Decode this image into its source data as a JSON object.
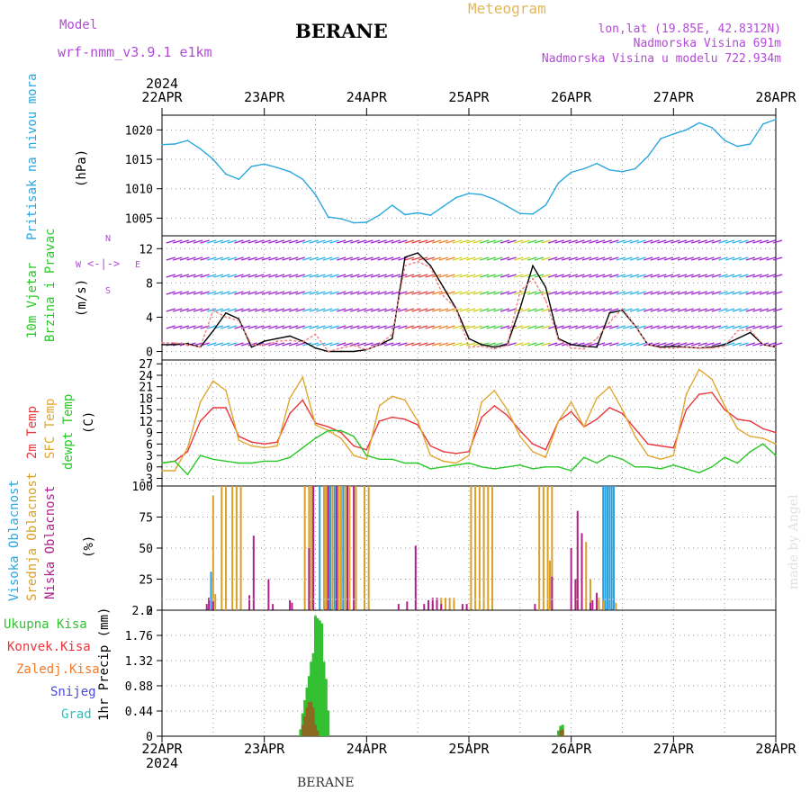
{
  "header": {
    "model_label": "Model",
    "model_name": "wrf-nmm_v3.9.1 e1km",
    "station": "BERANE",
    "product": "Meteogram",
    "lonlat": "lon,lat (19.85E, 42.8312N)",
    "elevation": "Nadmorska Visina 691m",
    "model_elevation": "Nadmorska Visina u modelu 722.934m"
  },
  "footer": {
    "station": "BERANE",
    "credit": "made by Angel"
  },
  "time_axis": {
    "year": "2024",
    "ticks": [
      "22APR",
      "23APR",
      "24APR",
      "25APR",
      "26APR",
      "27APR",
      "28APR"
    ]
  },
  "colors": {
    "pressure": "#2aa7df",
    "temp2m": "#e8363a",
    "sfc_temp": "#e0a632",
    "dewpoint": "#28c828",
    "cloud_high": "#2a9fe0",
    "cloud_mid": "#d9a02a",
    "cloud_low": "#b0208a",
    "precip_total": "#33c033",
    "precip_conv": "#e8363a",
    "precip_frozen": "#f07a2a",
    "precip_snow": "#4a4ad8",
    "precip_hail": "#2ac0c0",
    "wind_speed": "#000000",
    "wind_gust": "#f08080"
  },
  "panel_labels": {
    "pressure": [
      "Pritisak na nivou mora",
      "(hPa)"
    ],
    "wind": [
      "10m Vjetar",
      "Brzina i Pravac",
      "(m/s)"
    ],
    "wind_compass": [
      "N",
      "W",
      "E",
      "S"
    ],
    "temp": [
      "2m Temp",
      "SFC Temp",
      "dewpt Temp",
      "(C)"
    ],
    "cloud": [
      "Visoka Oblacnost",
      "Srednja Oblacnost",
      "Niska Oblacnost",
      "(%)"
    ],
    "precip_legend": [
      "Ukupna Kisa",
      "Konvek.Kisa",
      "Zaledj.Kisa",
      "Snijeg",
      "Grad"
    ],
    "precip_axis": "1hr Precip (mm)"
  },
  "chart_data": [
    {
      "type": "line",
      "panel": "pressure",
      "ylim": [
        1002,
        1022.5
      ],
      "yticks": [
        1005,
        1010,
        1015,
        1020
      ],
      "x": [
        0,
        3,
        6,
        9,
        12,
        15,
        18,
        21,
        24,
        27,
        30,
        33,
        36,
        39,
        42,
        45,
        48,
        51,
        54,
        57,
        60,
        63,
        66,
        69,
        72,
        75,
        78,
        81,
        84,
        87,
        90,
        93,
        96,
        99,
        102,
        105,
        108,
        111,
        114,
        117,
        120,
        123,
        126,
        129,
        132,
        135,
        138,
        141,
        144
      ],
      "series": [
        {
          "values": [
            1017.5,
            1017.6,
            1018.2,
            1016.8,
            1015.0,
            1012.5,
            1011.6,
            1013.8,
            1014.2,
            1013.6,
            1012.9,
            1011.6,
            1009.0,
            1005.2,
            1004.9,
            1004.2,
            1004.3,
            1005.5,
            1007.2,
            1005.6,
            1005.9,
            1005.5,
            1007.0,
            1008.5,
            1009.2,
            1009.0,
            1008.2,
            1007.0,
            1005.8,
            1005.7,
            1007.2,
            1011.0,
            1012.8,
            1013.4,
            1014.3,
            1013.2,
            1012.9,
            1013.4,
            1015.5,
            1018.5,
            1019.3,
            1020.0,
            1021.2,
            1020.4,
            1018.2,
            1017.2,
            1017.6,
            1021.0,
            1021.8
          ]
        }
      ]
    },
    {
      "type": "line",
      "panel": "wind",
      "ylim": [
        -1,
        13.5
      ],
      "yticks": [
        0,
        4,
        8,
        12
      ],
      "x": [
        0,
        3,
        6,
        9,
        12,
        15,
        18,
        21,
        24,
        27,
        30,
        33,
        36,
        39,
        42,
        45,
        48,
        51,
        54,
        57,
        60,
        63,
        66,
        69,
        72,
        75,
        78,
        81,
        84,
        87,
        90,
        93,
        96,
        99,
        102,
        105,
        108,
        111,
        114,
        117,
        120,
        123,
        126,
        129,
        132,
        135,
        138,
        141,
        144
      ],
      "series": [
        {
          "values": [
            0.8,
            0.8,
            0.9,
            0.5,
            2.4,
            4.5,
            3.8,
            0.5,
            1.2,
            1.5,
            1.8,
            1.2,
            0.4,
            0.0,
            0.0,
            0.0,
            0.2,
            0.8,
            1.5,
            11.0,
            11.5,
            10.0,
            7.5,
            5.0,
            1.5,
            0.8,
            0.5,
            0.8,
            5.0,
            10.0,
            7.5,
            1.5,
            0.8,
            0.6,
            0.5,
            4.5,
            4.8,
            3.0,
            0.8,
            0.5,
            0.6,
            0.5,
            0.4,
            0.5,
            0.8,
            1.5,
            2.2,
            0.8,
            0.5
          ]
        },
        {
          "values": [
            1.0,
            1.0,
            0.8,
            0.5,
            4.8,
            4.0,
            3.6,
            0.8,
            0.7,
            1.2,
            1.3,
            1.1,
            2.0,
            0.0,
            0.4,
            0.7,
            0.2,
            0.8,
            2.0,
            10.0,
            10.5,
            9.8,
            6.5,
            5.0,
            0.5,
            0.6,
            0.3,
            0.7,
            7.0,
            8.5,
            6.0,
            1.4,
            0.4,
            0.3,
            1.5,
            3.4,
            5.0,
            3.0,
            0.8,
            0.4,
            0.4,
            0.5,
            0.4,
            0.4,
            0.6,
            2.4,
            2.5,
            0.8,
            0.5
          ]
        }
      ]
    },
    {
      "type": "line",
      "panel": "temperature",
      "ylim": [
        -5,
        28
      ],
      "yticks": [
        -3,
        0,
        3,
        6,
        9,
        12,
        15,
        18,
        21,
        24,
        27
      ],
      "x": [
        0,
        3,
        6,
        9,
        12,
        15,
        18,
        21,
        24,
        27,
        30,
        33,
        36,
        39,
        42,
        45,
        48,
        51,
        54,
        57,
        60,
        63,
        66,
        69,
        72,
        75,
        78,
        81,
        84,
        87,
        90,
        93,
        96,
        99,
        102,
        105,
        108,
        111,
        114,
        117,
        120,
        123,
        126,
        129,
        132,
        135,
        138,
        141,
        144
      ],
      "series": [
        {
          "values": [
            1.0,
            1.5,
            4.0,
            12.0,
            15.5,
            15.5,
            8.0,
            6.5,
            6.0,
            6.5,
            14.0,
            17.5,
            11.5,
            10.5,
            9.0,
            5.5,
            4.5,
            12.0,
            13.0,
            12.5,
            11.0,
            5.5,
            4.0,
            3.5,
            4.0,
            13.0,
            16.0,
            13.5,
            9.5,
            6.0,
            4.5,
            12.0,
            14.5,
            10.5,
            12.5,
            15.5,
            14.0,
            10.0,
            6.0,
            5.5,
            5.0,
            15.0,
            19.0,
            19.5,
            15.0,
            12.5,
            12.0,
            10.0,
            9.0
          ]
        },
        {
          "values": [
            -1.0,
            -1.0,
            5.0,
            17.0,
            22.5,
            20.0,
            7.0,
            5.5,
            5.0,
            5.5,
            18.0,
            23.5,
            11.0,
            9.5,
            7.5,
            3.0,
            2.0,
            16.0,
            18.5,
            17.5,
            12.0,
            3.0,
            1.5,
            1.0,
            3.0,
            17.0,
            20.0,
            15.0,
            8.0,
            4.0,
            2.5,
            12.0,
            17.0,
            10.5,
            18.0,
            21.0,
            15.0,
            8.0,
            3.0,
            2.0,
            3.0,
            19.0,
            25.5,
            23.0,
            16.0,
            10.0,
            8.0,
            7.5,
            6.0
          ]
        },
        {
          "values": [
            1.0,
            1.5,
            -2.0,
            3.0,
            2.0,
            1.5,
            1.0,
            1.0,
            1.5,
            1.5,
            2.5,
            5.0,
            7.5,
            9.5,
            9.5,
            8.0,
            3.0,
            2.0,
            2.0,
            1.0,
            1.0,
            -0.5,
            0.0,
            0.5,
            1.0,
            0.0,
            -0.5,
            0.0,
            0.5,
            -0.5,
            0.0,
            0.0,
            -1.0,
            2.5,
            1.0,
            3.0,
            2.0,
            0.0,
            0.0,
            -0.5,
            0.5,
            -0.5,
            -1.5,
            0.0,
            2.5,
            1.0,
            4.0,
            6.0,
            3.0
          ]
        }
      ]
    },
    {
      "type": "bar",
      "panel": "clouds",
      "ylim": [
        0,
        100
      ],
      "yticks": [
        0,
        25,
        50,
        75,
        100
      ],
      "series": [
        {
          "name": "high",
          "bars": [
            [
              11.5,
              31
            ],
            [
              37.0,
              100
            ],
            [
              38.0,
              100
            ],
            [
              38.5,
              100
            ],
            [
              39.0,
              100
            ],
            [
              39.5,
              100
            ],
            [
              40.5,
              100
            ],
            [
              41.0,
              100
            ],
            [
              42.5,
              100
            ],
            [
              43.5,
              100
            ],
            [
              103.5,
              100
            ],
            [
              104.0,
              100
            ],
            [
              104.5,
              100
            ],
            [
              105.0,
              100
            ],
            [
              105.5,
              100
            ],
            [
              106.0,
              100
            ]
          ]
        },
        {
          "name": "mid",
          "bars": [
            [
              12.0,
              92
            ],
            [
              12.5,
              13
            ],
            [
              14.0,
              100
            ],
            [
              15.0,
              100
            ],
            [
              16.5,
              100
            ],
            [
              17.5,
              100
            ],
            [
              18.5,
              100
            ],
            [
              33.5,
              100
            ],
            [
              34.5,
              100
            ],
            [
              35.0,
              100
            ],
            [
              35.5,
              100
            ],
            [
              38.0,
              100
            ],
            [
              38.5,
              100
            ],
            [
              40.0,
              100
            ],
            [
              41.5,
              100
            ],
            [
              42.0,
              100
            ],
            [
              43.0,
              100
            ],
            [
              44.0,
              100
            ],
            [
              45.5,
              100
            ],
            [
              47.5,
              100
            ],
            [
              48.5,
              100
            ],
            [
              72.5,
              100
            ],
            [
              73.5,
              100
            ],
            [
              74.5,
              100
            ],
            [
              75.5,
              100
            ],
            [
              76.5,
              100
            ],
            [
              77.5,
              100
            ],
            [
              88.5,
              100
            ],
            [
              89.5,
              100
            ],
            [
              90.5,
              100
            ],
            [
              91.5,
              100
            ],
            [
              91.0,
              40
            ],
            [
              91.5,
              26
            ],
            [
              97.5,
              25
            ],
            [
              98.5,
              46
            ],
            [
              99.5,
              55
            ],
            [
              100.5,
              25
            ],
            [
              102.5,
              10
            ],
            [
              103.5,
              8
            ],
            [
              106.5,
              6
            ],
            [
              63.5,
              5
            ],
            [
              64.5,
              10
            ],
            [
              65.5,
              10
            ],
            [
              66.5,
              10
            ],
            [
              67.5,
              10
            ],
            [
              68.5,
              10
            ]
          ]
        },
        {
          "name": "low",
          "bars": [
            [
              10.5,
              5
            ],
            [
              11.0,
              10
            ],
            [
              12.0,
              7
            ],
            [
              20.5,
              12
            ],
            [
              21.5,
              60
            ],
            [
              25.0,
              25
            ],
            [
              26.0,
              5
            ],
            [
              30.0,
              8
            ],
            [
              30.5,
              6
            ],
            [
              34.5,
              50
            ],
            [
              35.5,
              100
            ],
            [
              39.0,
              100
            ],
            [
              41.0,
              100
            ],
            [
              43.5,
              100
            ],
            [
              45.0,
              100
            ],
            [
              55.5,
              5
            ],
            [
              57.5,
              7
            ],
            [
              59.5,
              52
            ],
            [
              61.5,
              5
            ],
            [
              62.5,
              8
            ],
            [
              63.5,
              10
            ],
            [
              64.5,
              10
            ],
            [
              65.5,
              5
            ],
            [
              70.5,
              5
            ],
            [
              71.5,
              5
            ],
            [
              87.5,
              5
            ],
            [
              91.5,
              27
            ],
            [
              96.0,
              50
            ],
            [
              97.0,
              25
            ],
            [
              97.5,
              80
            ],
            [
              98.5,
              62
            ],
            [
              100.5,
              6
            ],
            [
              101.0,
              8
            ],
            [
              102.0,
              14
            ]
          ]
        }
      ]
    },
    {
      "type": "bar",
      "panel": "precipitation",
      "ylim": [
        0,
        2.2
      ],
      "yticks": [
        0,
        0.44,
        0.88,
        1.32,
        1.76,
        2.2
      ],
      "series": [
        {
          "name": "total",
          "bars": [
            [
              32.5,
              0.12
            ],
            [
              33.0,
              0.4
            ],
            [
              33.5,
              0.63
            ],
            [
              34.0,
              0.85
            ],
            [
              34.5,
              1.05
            ],
            [
              35.0,
              1.3
            ],
            [
              35.5,
              1.45
            ],
            [
              36.0,
              2.1
            ],
            [
              36.5,
              2.06
            ],
            [
              37.0,
              2.02
            ],
            [
              37.5,
              1.97
            ],
            [
              38.0,
              1.3
            ],
            [
              38.5,
              1.0
            ],
            [
              39.0,
              0.45
            ],
            [
              93.0,
              0.1
            ],
            [
              93.5,
              0.18
            ],
            [
              94.0,
              0.2
            ]
          ]
        },
        {
          "name": "convective",
          "bars": [
            [
              33.0,
              0.2
            ],
            [
              33.5,
              0.35
            ],
            [
              34.0,
              0.5
            ],
            [
              34.5,
              0.6
            ],
            [
              35.0,
              0.6
            ],
            [
              35.5,
              0.5
            ],
            [
              36.0,
              0.2
            ],
            [
              36.5,
              0.1
            ],
            [
              93.5,
              0.1
            ],
            [
              94.0,
              0.12
            ]
          ]
        }
      ]
    }
  ]
}
